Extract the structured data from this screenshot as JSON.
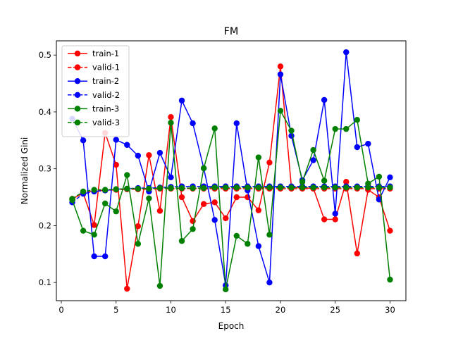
{
  "chart_data": {
    "type": "line",
    "title": "FM",
    "xlabel": "Epoch",
    "ylabel": "Normalized Gini",
    "xlim": [
      -0.45,
      31.45
    ],
    "ylim": [
      0.068,
      0.525
    ],
    "xticks": [
      0,
      5,
      10,
      15,
      20,
      25,
      30
    ],
    "yticks": [
      0.1,
      0.2,
      0.3,
      0.4,
      0.5
    ],
    "ytick_labels": [
      "0.1",
      "0.2",
      "0.3",
      "0.4",
      "0.5"
    ],
    "grid": false,
    "legend_position": "top-left",
    "x": [
      1,
      2,
      3,
      4,
      5,
      6,
      7,
      8,
      9,
      10,
      11,
      12,
      13,
      14,
      15,
      16,
      17,
      18,
      19,
      20,
      21,
      22,
      23,
      24,
      25,
      26,
      27,
      28,
      29,
      30
    ],
    "series": [
      {
        "name": "train-1",
        "color": "#ff0000",
        "dash": "solid",
        "values": [
          0.247,
          0.257,
          0.201,
          0.363,
          0.307,
          0.089,
          0.199,
          0.324,
          0.226,
          0.391,
          0.25,
          0.208,
          0.238,
          0.241,
          0.213,
          0.25,
          0.25,
          0.227,
          0.311,
          0.48,
          0.268,
          0.266,
          0.266,
          0.211,
          0.211,
          0.277,
          0.151,
          0.263,
          0.25,
          0.191
        ]
      },
      {
        "name": "valid-1",
        "color": "#ff0000",
        "dash": "dashed",
        "values": [
          0.247,
          0.258,
          0.261,
          0.262,
          0.263,
          0.264,
          0.264,
          0.264,
          0.265,
          0.265,
          0.265,
          0.265,
          0.265,
          0.265,
          0.265,
          0.265,
          0.265,
          0.265,
          0.265,
          0.265,
          0.265,
          0.265,
          0.265,
          0.265,
          0.265,
          0.265,
          0.265,
          0.265,
          0.265,
          0.265
        ]
      },
      {
        "name": "train-2",
        "color": "#0000ff",
        "dash": "solid",
        "values": [
          0.388,
          0.35,
          0.146,
          0.146,
          0.351,
          0.342,
          0.323,
          0.26,
          0.328,
          0.285,
          0.42,
          0.38,
          0.301,
          0.21,
          0.095,
          0.38,
          0.262,
          0.164,
          0.1,
          0.466,
          0.358,
          0.28,
          0.315,
          0.421,
          0.221,
          0.505,
          0.338,
          0.344,
          0.246,
          0.285
        ]
      },
      {
        "name": "valid-2",
        "color": "#0000ff",
        "dash": "dashed",
        "values": [
          0.241,
          0.256,
          0.26,
          0.262,
          0.264,
          0.265,
          0.266,
          0.266,
          0.267,
          0.268,
          0.269,
          0.269,
          0.269,
          0.269,
          0.269,
          0.269,
          0.269,
          0.269,
          0.269,
          0.269,
          0.269,
          0.269,
          0.269,
          0.269,
          0.269,
          0.269,
          0.269,
          0.269,
          0.269,
          0.269
        ]
      },
      {
        "name": "train-3",
        "color": "#008000",
        "dash": "solid",
        "values": [
          0.245,
          0.191,
          0.184,
          0.239,
          0.225,
          0.289,
          0.168,
          0.248,
          0.094,
          0.381,
          0.173,
          0.194,
          0.301,
          0.371,
          0.088,
          0.182,
          0.168,
          0.32,
          0.184,
          0.402,
          0.367,
          0.277,
          0.333,
          0.279,
          0.37,
          0.37,
          0.386,
          0.274,
          0.286,
          0.105
        ]
      },
      {
        "name": "valid-3",
        "color": "#008000",
        "dash": "dashed",
        "values": [
          0.247,
          0.26,
          0.263,
          0.263,
          0.264,
          0.265,
          0.265,
          0.265,
          0.266,
          0.266,
          0.266,
          0.266,
          0.266,
          0.267,
          0.267,
          0.267,
          0.267,
          0.267,
          0.267,
          0.267,
          0.267,
          0.267,
          0.267,
          0.267,
          0.267,
          0.267,
          0.267,
          0.267,
          0.267,
          0.267
        ]
      }
    ]
  }
}
